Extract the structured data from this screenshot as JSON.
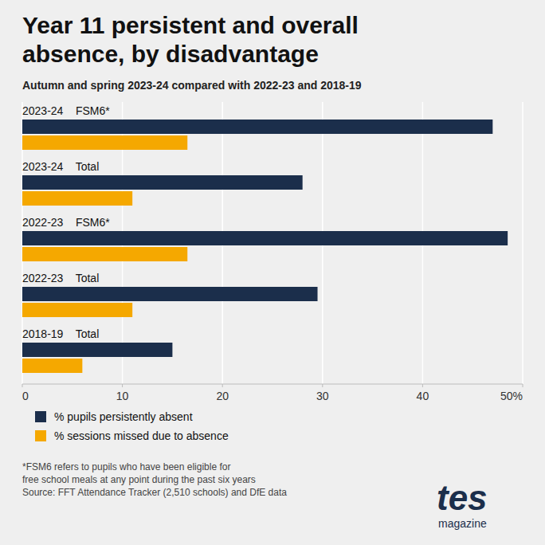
{
  "chart_data": {
    "type": "bar",
    "orientation": "horizontal",
    "title": "Year 11 persistent and overall\nabsence, by disadvantage",
    "subtitle": "Autumn and spring 2023-24 compared with 2022-23 and 2018-19",
    "categories": [
      "2023-24    FSM6*",
      "2023-24    Total",
      "2022-23    FSM6*",
      "2022-23    Total",
      "2018-19    Total"
    ],
    "series": [
      {
        "name": "% pupils persistently absent",
        "color": "#1b2e4b",
        "values": [
          47,
          28,
          48.5,
          29.5,
          15
        ]
      },
      {
        "name": "% sessions missed due to absence",
        "color": "#f5a800",
        "values": [
          16.5,
          11,
          16.5,
          11,
          6
        ]
      }
    ],
    "xlim": [
      0,
      50
    ],
    "xticks": [
      0,
      10,
      20,
      30,
      40,
      {
        "value": 50,
        "label": "50%"
      }
    ],
    "grid": true,
    "legend": "bottom",
    "footnote": [
      "*FSM6 refers to pupils who have been eligible for",
      "free school meals at any point during the past six years",
      "Source: FFT Attendance Tracker (2,510 schools) and DfE data"
    ],
    "annotations": [
      "tes",
      "magazine"
    ]
  }
}
